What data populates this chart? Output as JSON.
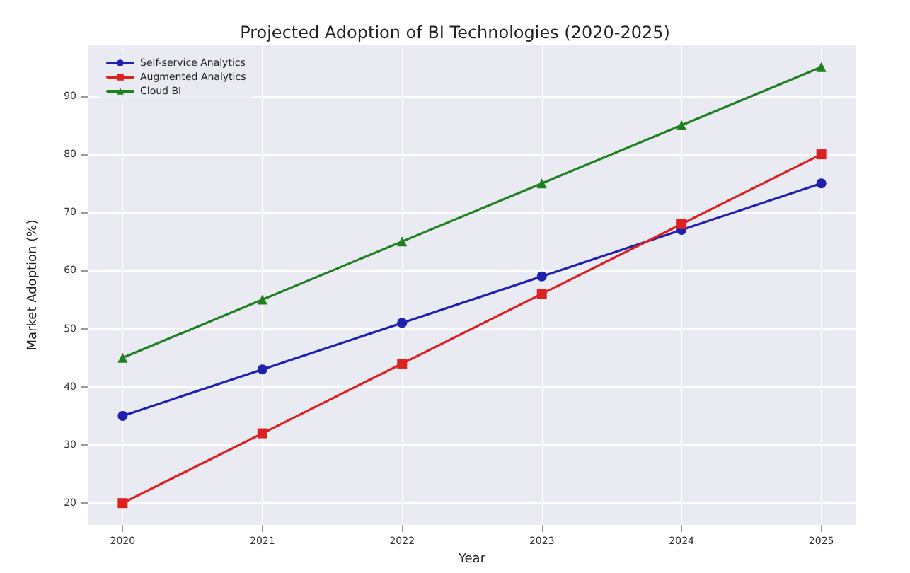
{
  "chart_data": {
    "type": "line",
    "title": "Projected Adoption of BI Technologies (2020-2025)",
    "xlabel": "Year",
    "ylabel": "Market Adoption (%)",
    "x": [
      2020,
      2021,
      2022,
      2023,
      2024,
      2025
    ],
    "series": [
      {
        "name": "Self-service Analytics",
        "color": "#2020b0",
        "marker": "circle",
        "values": [
          35,
          43,
          51,
          59,
          67,
          75
        ]
      },
      {
        "name": "Augmented Analytics",
        "color": "#dd2020",
        "marker": "square",
        "values": [
          20,
          32,
          44,
          56,
          68,
          80
        ]
      },
      {
        "name": "Cloud BI",
        "color": "#1e8020",
        "marker": "triangle",
        "values": [
          45,
          55,
          65,
          75,
          85,
          95
        ]
      }
    ],
    "xlim": [
      2019.75,
      2025.25
    ],
    "xticks": [
      2020,
      2021,
      2022,
      2023,
      2024,
      2025
    ],
    "ylim": [
      16.25,
      98.75
    ],
    "yticks": [
      20,
      30,
      40,
      50,
      60,
      70,
      80,
      90
    ],
    "grid": true,
    "legend": "top left",
    "line_style": "solid"
  }
}
